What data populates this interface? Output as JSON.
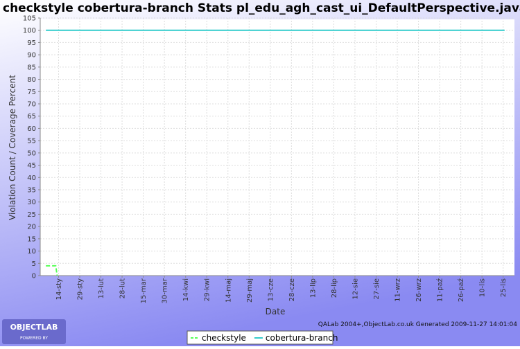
{
  "chart_data": {
    "type": "line",
    "title": "checkstyle cobertura-branch  Stats pl_edu_agh_cast_ui_DefaultPerspective.java",
    "x_label": "Date",
    "y_label": "Violation Count / Coverage Percent",
    "footer": "QALab 2004+,ObjectLab.co.uk Generated 2009-11-27 14:01:04",
    "logo": {
      "name": "OBJECTLAB",
      "tagline": "POWERED BY"
    },
    "series": [
      {
        "name": "checkstyle",
        "color": "#55ff55",
        "dashed": true,
        "x": [
          5,
          12,
          13
        ],
        "values": [
          4,
          4,
          0
        ]
      },
      {
        "name": "cobertura-branch",
        "color": "#33cccc",
        "dashed": false,
        "x": [
          5,
          330
        ],
        "values": [
          100,
          100
        ]
      }
    ],
    "xlim": [
      1,
      337
    ],
    "xticks": [
      {
        "value": 14,
        "label": "14-sty"
      },
      {
        "value": 29,
        "label": "29-sty"
      },
      {
        "value": 44,
        "label": "13-lut"
      },
      {
        "value": 59,
        "label": "28-lut"
      },
      {
        "value": 74,
        "label": "15-mar"
      },
      {
        "value": 89,
        "label": "30-mar"
      },
      {
        "value": 104,
        "label": "14-kwi"
      },
      {
        "value": 119,
        "label": "29-kwi"
      },
      {
        "value": 134,
        "label": "14-maj"
      },
      {
        "value": 149,
        "label": "29-maj"
      },
      {
        "value": 164,
        "label": "13-cze"
      },
      {
        "value": 179,
        "label": "28-cze"
      },
      {
        "value": 194,
        "label": "13-lip"
      },
      {
        "value": 209,
        "label": "28-lip"
      },
      {
        "value": 224,
        "label": "12-sie"
      },
      {
        "value": 239,
        "label": "27-sie"
      },
      {
        "value": 254,
        "label": "11-wrz"
      },
      {
        "value": 269,
        "label": "26-wrz"
      },
      {
        "value": 284,
        "label": "11-paź"
      },
      {
        "value": 299,
        "label": "26-paź"
      },
      {
        "value": 314,
        "label": "10-lis"
      },
      {
        "value": 329,
        "label": "25-lis"
      }
    ],
    "ylim": [
      0,
      105
    ],
    "yticks": [
      0,
      5,
      10,
      15,
      20,
      25,
      30,
      35,
      40,
      45,
      50,
      55,
      60,
      65,
      70,
      75,
      80,
      85,
      90,
      95,
      100,
      105
    ],
    "grid": true,
    "legend": "bottom"
  }
}
